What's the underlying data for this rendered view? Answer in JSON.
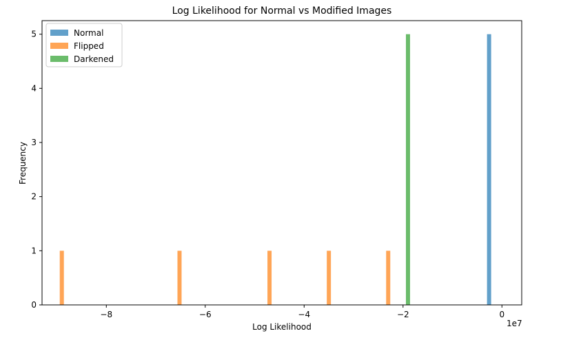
{
  "chart_data": {
    "type": "bar",
    "title": "Log Likelihood for Normal vs Modified Images",
    "xlabel": "Log Likelihood",
    "ylabel": "Frequency",
    "x_offset_label": "1e7",
    "xlim": [
      -9.3,
      0.4
    ],
    "ylim": [
      0,
      5.25
    ],
    "x_ticks": [
      -8,
      -6,
      -4,
      -2,
      0
    ],
    "x_tick_labels": [
      "−8",
      "−6",
      "−4",
      "−2",
      "0"
    ],
    "y_ticks": [
      0,
      1,
      2,
      3,
      4,
      5
    ],
    "y_tick_labels": [
      "0",
      "1",
      "2",
      "3",
      "4",
      "5"
    ],
    "legend_position": "top-left",
    "series": [
      {
        "name": "Normal",
        "color": "#1f77b4",
        "opacity": 0.7,
        "bins": [
          {
            "x": -0.26,
            "count": 5
          }
        ]
      },
      {
        "name": "Flipped",
        "color": "#ff7f0e",
        "opacity": 0.7,
        "bins": [
          {
            "x": -8.9,
            "count": 1
          },
          {
            "x": -6.52,
            "count": 1
          },
          {
            "x": -4.7,
            "count": 1
          },
          {
            "x": -3.5,
            "count": 1
          },
          {
            "x": -2.3,
            "count": 1
          }
        ]
      },
      {
        "name": "Darkened",
        "color": "#2ca02c",
        "opacity": 0.7,
        "bins": [
          {
            "x": -1.9,
            "count": 5
          }
        ]
      }
    ]
  }
}
